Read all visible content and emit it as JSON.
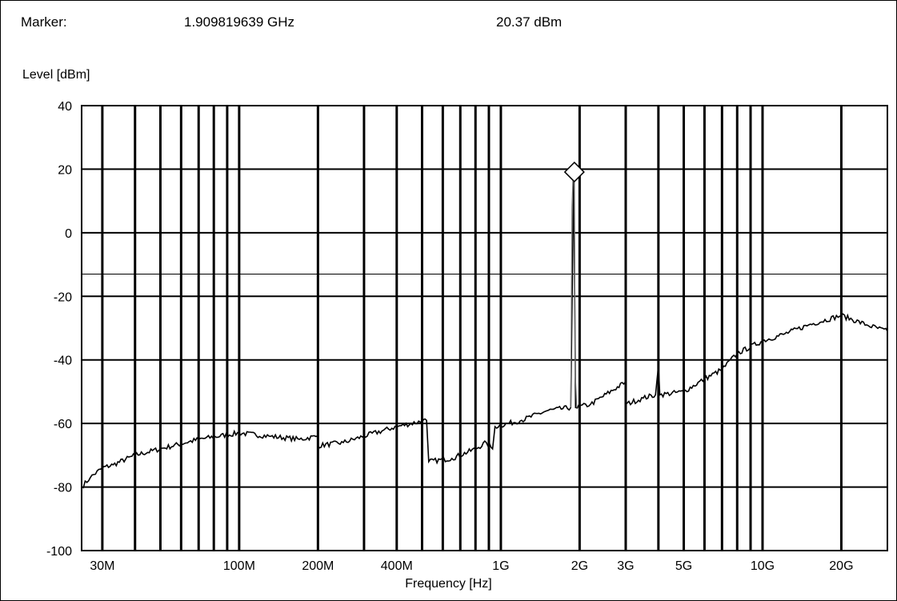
{
  "marker": {
    "label": "Marker:",
    "frequency": "1.909819639 GHz",
    "level": "20.37 dBm",
    "freq_hz": 1909819639,
    "level_dbm": 20.37
  },
  "chart_data": {
    "type": "line",
    "title": "",
    "xlabel": "Frequency [Hz]",
    "ylabel": "Level [dBm]",
    "x_scale": "log",
    "xlim": [
      25000000,
      30000000000
    ],
    "ylim": [
      -100,
      40
    ],
    "yticks": [
      40,
      20,
      0,
      -20,
      -40,
      -60,
      -80,
      -100
    ],
    "xticks": [
      {
        "label": "30M",
        "value": 30000000
      },
      {
        "label": "100M",
        "value": 100000000
      },
      {
        "label": "200M",
        "value": 200000000
      },
      {
        "label": "400M",
        "value": 400000000
      },
      {
        "label": "1G",
        "value": 1000000000
      },
      {
        "label": "2G",
        "value": 2000000000
      },
      {
        "label": "3G",
        "value": 3000000000
      },
      {
        "label": "5G",
        "value": 5000000000
      },
      {
        "label": "10G",
        "value": 10000000000
      },
      {
        "label": "20G",
        "value": 20000000000
      }
    ],
    "grid": true,
    "limit_line_dbm": -13,
    "series": [
      {
        "type": "line",
        "color": "#000000",
        "points": [
          [
            25000000,
            -80
          ],
          [
            27000000,
            -77
          ],
          [
            30000000,
            -74
          ],
          [
            33000000,
            -73
          ],
          [
            40000000,
            -70
          ],
          [
            50000000,
            -68
          ],
          [
            70000000,
            -65
          ],
          [
            100000000,
            -63
          ],
          [
            130000000,
            -64
          ],
          [
            170000000,
            -65
          ],
          [
            199000000,
            -64
          ],
          [
            200000000,
            -67
          ],
          [
            250000000,
            -66
          ],
          [
            300000000,
            -64
          ],
          [
            400000000,
            -61
          ],
          [
            520000000,
            -59
          ],
          [
            530000000,
            -72
          ],
          [
            650000000,
            -71
          ],
          [
            800000000,
            -68
          ],
          [
            880000000,
            -66
          ],
          [
            930000000,
            -68
          ],
          [
            950000000,
            -61
          ],
          [
            1200000000,
            -59
          ],
          [
            1500000000,
            -56
          ],
          [
            1850000000,
            -55
          ],
          [
            1900000000,
            20.37
          ],
          [
            1930000000,
            -55
          ],
          [
            2200000000,
            -54
          ],
          [
            2990000000,
            -47
          ],
          [
            3000000000,
            -54
          ],
          [
            3500000000,
            -52
          ],
          [
            3900000000,
            -51
          ],
          [
            4000000000,
            -42
          ],
          [
            4050000000,
            -51
          ],
          [
            5000000000,
            -50
          ],
          [
            6000000000,
            -46
          ],
          [
            7000000000,
            -43
          ],
          [
            8000000000,
            -38
          ],
          [
            10000000000,
            -34
          ],
          [
            12000000000,
            -32
          ],
          [
            15000000000,
            -29
          ],
          [
            20000000000,
            -26
          ],
          [
            25000000000,
            -29
          ],
          [
            30000000000,
            -31
          ]
        ]
      },
      {
        "type": "line",
        "color": "#777777",
        "points": [
          [
            1850000000,
            -55
          ],
          [
            1870000000,
            8
          ],
          [
            1895000000,
            22
          ],
          [
            1910000000,
            20
          ],
          [
            1925000000,
            -44
          ],
          [
            1950000000,
            -55
          ]
        ]
      }
    ]
  }
}
